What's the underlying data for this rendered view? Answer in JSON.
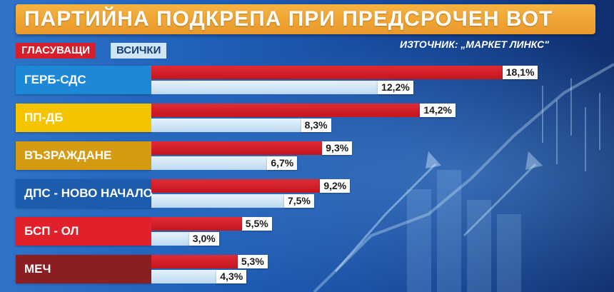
{
  "title": "ПАРТИЙНА ПОДКРЕПА ПРИ ПРЕДСРОЧЕН ВОТ",
  "legend": {
    "voters": "ГЛАСУВАЩИ",
    "all": "ВСИЧКИ"
  },
  "source": "ИЗТОЧНИК: „МАРКЕТ ЛИНКС\"",
  "colors": {
    "title_bg": "#eea232",
    "voters_bar": "#d81e2a",
    "all_bar": "#cfe6f7",
    "background": "#1f5fb8"
  },
  "chart_data": {
    "type": "bar",
    "orientation": "horizontal",
    "categories": [
      "ГЕРБ-СДС",
      "ПП-ДБ",
      "ВЪЗРАЖДАНЕ",
      "ДПС - НОВО НАЧАЛО",
      "БСП - ОЛ",
      "МЕЧ"
    ],
    "category_colors": [
      "#1e88d8",
      "#f4c400",
      "#d49a12",
      "#1c5cae",
      "#e0202a",
      "#8a1e22"
    ],
    "series": [
      {
        "name": "ГЛАСУВАЩИ",
        "values": [
          18.1,
          14.2,
          9.3,
          9.2,
          5.5,
          5.3
        ],
        "labels": [
          "18,1%",
          "14,2%",
          "9,3%",
          "9,2%",
          "5,5%",
          "5,3%"
        ]
      },
      {
        "name": "ВСИЧКИ",
        "values": [
          12.2,
          8.3,
          6.7,
          7.5,
          3.0,
          4.3
        ],
        "labels": [
          "12,2%",
          "8,3%",
          "6,7%",
          "7,5%",
          "3,0%",
          "4,3%"
        ]
      }
    ],
    "unit": "%",
    "xlim": [
      0,
      20
    ]
  }
}
